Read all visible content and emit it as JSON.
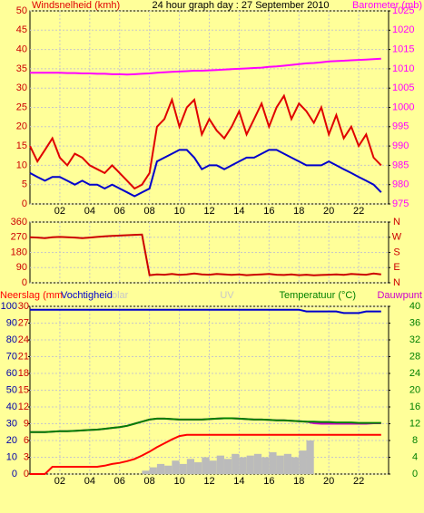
{
  "chart_data": [
    {
      "type": "line",
      "title": "24 hour graph day : 27 September 2010",
      "x": [
        0,
        0.5,
        1,
        1.5,
        2,
        2.5,
        3,
        3.5,
        4,
        4.5,
        5,
        5.5,
        6,
        6.5,
        7,
        7.5,
        8,
        8.5,
        9,
        9.5,
        10,
        10.5,
        11,
        11.5,
        12,
        12.5,
        13,
        13.5,
        14,
        14.5,
        15,
        15.5,
        16,
        16.5,
        17,
        17.5,
        18,
        18.5,
        19,
        19.5,
        20,
        20.5,
        21,
        21.5,
        22,
        22.5,
        23,
        23.5
      ],
      "xlim": [
        0,
        24
      ],
      "xticks": [
        {
          "value": 2,
          "label": "02"
        },
        {
          "value": 4,
          "label": "04"
        },
        {
          "value": 6,
          "label": "06"
        },
        {
          "value": 8,
          "label": "08"
        },
        {
          "value": 10,
          "label": "10"
        },
        {
          "value": 12,
          "label": "12"
        },
        {
          "value": 14,
          "label": "14"
        },
        {
          "value": 16,
          "label": "16"
        },
        {
          "value": 18,
          "label": "18"
        },
        {
          "value": 20,
          "label": "20"
        },
        {
          "value": 22,
          "label": "22"
        }
      ],
      "ylim": [
        0,
        50
      ],
      "yticks": [
        0,
        5,
        10,
        15,
        20,
        25,
        30,
        35,
        40,
        45,
        50
      ],
      "y2lim": [
        975,
        1025
      ],
      "y2ticks": [
        975,
        980,
        985,
        990,
        995,
        1000,
        1005,
        1010,
        1015,
        1020,
        1025
      ],
      "grid": true,
      "series": [
        {
          "name": "Windsnelheid (kmh)",
          "color": "#e00000",
          "values": [
            15,
            11,
            14,
            17,
            12,
            10,
            13,
            12,
            10,
            9,
            8,
            10,
            8,
            6,
            4,
            5,
            8,
            20,
            22,
            27,
            20,
            25,
            27,
            18,
            22,
            19,
            17,
            20,
            24,
            18,
            22,
            26,
            20,
            25,
            28,
            22,
            26,
            24,
            21,
            25,
            18,
            23,
            17,
            20,
            15,
            18,
            12,
            10
          ]
        },
        {
          "color": "#0000cc",
          "values": [
            8,
            7,
            6,
            7,
            7,
            6,
            5,
            6,
            5,
            5,
            4,
            5,
            4,
            3,
            2,
            3,
            4,
            11,
            12,
            13,
            14,
            14,
            12,
            9,
            10,
            10,
            9,
            10,
            11,
            12,
            12,
            13,
            14,
            14,
            13,
            12,
            11,
            10,
            10,
            10,
            11,
            10,
            9,
            8,
            7,
            6,
            5,
            3
          ]
        },
        {
          "name": "Barometer (mb)",
          "color": "#ff00ff",
          "axis": "y2",
          "values": [
            1009,
            1009,
            1009,
            1009,
            1009,
            1008.9,
            1008.9,
            1008.8,
            1008.8,
            1008.7,
            1008.7,
            1008.6,
            1008.6,
            1008.5,
            1008.6,
            1008.7,
            1008.8,
            1009,
            1009.1,
            1009.2,
            1009.3,
            1009.4,
            1009.5,
            1009.5,
            1009.6,
            1009.7,
            1009.8,
            1009.9,
            1010,
            1010.1,
            1010.2,
            1010.3,
            1010.5,
            1010.6,
            1010.8,
            1011,
            1011.2,
            1011.4,
            1011.5,
            1011.7,
            1011.9,
            1012,
            1012.1,
            1012.2,
            1012.3,
            1012.4,
            1012.5,
            1012.6
          ]
        }
      ]
    },
    {
      "type": "line",
      "x": [
        0,
        0.5,
        1,
        1.5,
        2,
        2.5,
        3,
        3.5,
        4,
        4.5,
        5,
        5.5,
        6,
        6.5,
        7,
        7.5,
        8,
        8.5,
        9,
        9.5,
        10,
        10.5,
        11,
        11.5,
        12,
        12.5,
        13,
        13.5,
        14,
        14.5,
        15,
        15.5,
        16,
        16.5,
        17,
        17.5,
        18,
        18.5,
        19,
        19.5,
        20,
        20.5,
        21,
        21.5,
        22,
        22.5,
        23,
        23.5
      ],
      "xlim": [
        0,
        24
      ],
      "xticks": [
        2,
        4,
        6,
        8,
        10,
        12,
        14,
        16,
        18,
        20,
        22
      ],
      "ylim": [
        0,
        360
      ],
      "yticks": [
        0,
        90,
        180,
        270,
        360
      ],
      "y2lim": [
        0,
        360
      ],
      "y2ticks": [
        {
          "value": 0,
          "label": "N"
        },
        {
          "value": 90,
          "label": "E"
        },
        {
          "value": 180,
          "label": "S"
        },
        {
          "value": 270,
          "label": "W"
        },
        {
          "value": 360,
          "label": "N"
        }
      ],
      "grid": true,
      "series": [
        {
          "color": "#cc0000",
          "values": [
            270,
            268,
            265,
            270,
            272,
            270,
            268,
            265,
            268,
            272,
            275,
            278,
            280,
            282,
            284,
            286,
            45,
            50,
            48,
            52,
            47,
            50,
            55,
            50,
            48,
            52,
            50,
            47,
            50,
            45,
            48,
            50,
            52,
            48,
            46,
            50,
            45,
            48,
            44,
            46,
            48,
            50,
            47,
            52,
            50,
            48,
            55,
            50
          ]
        }
      ]
    },
    {
      "type": "line",
      "x": [
        0,
        0.5,
        1,
        1.5,
        2,
        2.5,
        3,
        3.5,
        4,
        4.5,
        5,
        5.5,
        6,
        6.5,
        7,
        7.5,
        8,
        8.5,
        9,
        9.5,
        10,
        10.5,
        11,
        11.5,
        12,
        12.5,
        13,
        13.5,
        14,
        14.5,
        15,
        15.5,
        16,
        16.5,
        17,
        17.5,
        18,
        18.5,
        19,
        19.5,
        20,
        20.5,
        21,
        21.5,
        22,
        22.5,
        23,
        23.5
      ],
      "xlim": [
        0,
        24
      ],
      "xticks": [
        {
          "value": 2,
          "label": "02"
        },
        {
          "value": 4,
          "label": "04"
        },
        {
          "value": 6,
          "label": "06"
        },
        {
          "value": 8,
          "label": "08"
        },
        {
          "value": 10,
          "label": "10"
        },
        {
          "value": 12,
          "label": "12"
        },
        {
          "value": 14,
          "label": "14"
        },
        {
          "value": 16,
          "label": "16"
        },
        {
          "value": 18,
          "label": "18"
        },
        {
          "value": 20,
          "label": "20"
        },
        {
          "value": 22,
          "label": "22"
        }
      ],
      "ylim": [
        0,
        100
      ],
      "yticks": [
        0,
        10,
        20,
        30,
        40,
        50,
        60,
        70,
        80,
        90,
        100
      ],
      "y3lim": [
        0,
        30
      ],
      "y3ticks": [
        0,
        3,
        6,
        9,
        12,
        15,
        18,
        21,
        24,
        27,
        30
      ],
      "y2lim": [
        0,
        40
      ],
      "y2ticks": [
        0,
        4,
        8,
        12,
        16,
        20,
        24,
        28,
        32,
        36,
        40
      ],
      "grid": true,
      "annotation": "UV",
      "series": [
        {
          "name": "olar",
          "color": "#bbbbbb",
          "kind": "area",
          "values": [
            0,
            0,
            0,
            0,
            0,
            0,
            0,
            0,
            0,
            0,
            0,
            0,
            0,
            0,
            0,
            2,
            4,
            6,
            5,
            8,
            6,
            9,
            7,
            10,
            8,
            11,
            9,
            12,
            10,
            11,
            12,
            10,
            13,
            11,
            12,
            10,
            14,
            20,
            0,
            0,
            0,
            0,
            0,
            0,
            0,
            0,
            0,
            0
          ]
        },
        {
          "name": "Neerslag (mm",
          "color": "#ff0000",
          "axis": "y3",
          "values": [
            0,
            0,
            0,
            1.3,
            1.3,
            1.3,
            1.3,
            1.3,
            1.3,
            1.3,
            1.5,
            1.8,
            2,
            2.3,
            2.7,
            3.3,
            4,
            4.8,
            5.5,
            6.2,
            6.8,
            7,
            7,
            7,
            7,
            7,
            7,
            7,
            7,
            7,
            7,
            7,
            7,
            7,
            7,
            7,
            7,
            7,
            7,
            7,
            7,
            7,
            7,
            7,
            7,
            7,
            7,
            7
          ]
        },
        {
          "name": "Vochtigheid",
          "color": "#0000cc",
          "values": [
            98,
            98,
            98,
            98,
            98,
            98,
            98,
            98,
            98,
            98,
            98,
            98,
            98,
            98,
            98,
            98,
            98,
            98,
            98,
            98,
            98,
            98,
            98,
            98,
            98,
            98,
            98,
            98,
            98,
            98,
            98,
            98,
            98,
            98,
            98,
            98,
            98,
            97,
            97,
            97,
            97,
            97,
            96,
            96,
            96,
            97,
            97,
            97
          ]
        },
        {
          "name": "Dauwpunt",
          "color": "#cc00cc",
          "axis": "y2",
          "values": [
            10,
            10,
            10,
            10.1,
            10.2,
            10.2,
            10.3,
            10.4,
            10.5,
            10.6,
            10.8,
            11,
            11.2,
            11.5,
            12,
            12.5,
            13,
            13.2,
            13.2,
            13.1,
            13,
            13,
            13,
            13,
            13.1,
            13.2,
            13.3,
            13.3,
            13.2,
            13.1,
            13,
            13,
            12.9,
            12.8,
            12.8,
            12.7,
            12.6,
            12.5,
            12.1,
            12,
            12,
            12,
            12,
            12,
            12,
            12,
            12.1,
            12.1
          ]
        },
        {
          "name": "Temperatuur (°C)",
          "color": "#008000",
          "axis": "y2",
          "values": [
            10,
            10,
            10,
            10.1,
            10.2,
            10.2,
            10.3,
            10.4,
            10.5,
            10.6,
            10.8,
            11,
            11.2,
            11.5,
            12,
            12.5,
            13,
            13.2,
            13.2,
            13.1,
            13,
            13,
            13,
            13,
            13.1,
            13.2,
            13.3,
            13.3,
            13.2,
            13.1,
            13,
            13,
            12.9,
            12.8,
            12.8,
            12.7,
            12.6,
            12.5,
            12.5,
            12.4,
            12.4,
            12.3,
            12.3,
            12.3,
            12.2,
            12.2,
            12.2,
            12.2
          ]
        }
      ]
    }
  ]
}
